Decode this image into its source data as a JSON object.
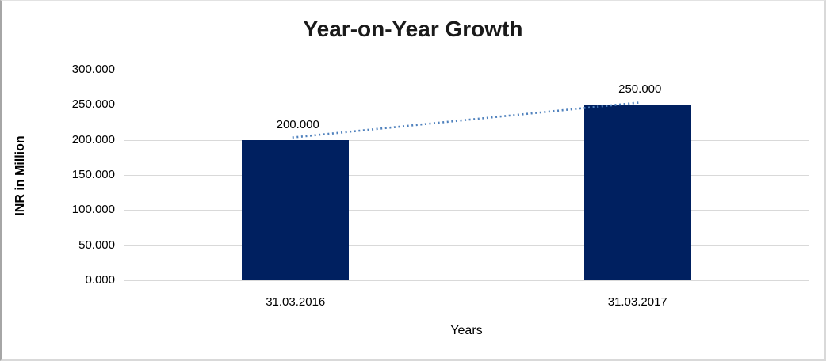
{
  "chart_data": {
    "type": "bar",
    "title": "Year-on-Year Growth",
    "xlabel": "Years",
    "ylabel": "INR in Million",
    "categories": [
      "31.03.2016",
      "31.03.2017"
    ],
    "values": [
      200,
      250
    ],
    "value_labels": [
      "200.000",
      "250.000"
    ],
    "ylim": [
      0,
      300
    ],
    "ytick_step": 50,
    "ytick_labels": [
      "300.000",
      "250.000",
      "200.000",
      "150.000",
      "100.000",
      "50.000",
      "0.000"
    ],
    "grid": true,
    "legend_position": "none",
    "bar_color": "#002060",
    "gridline_color": "#d9d9d9",
    "trendline": {
      "style": "dotted",
      "color": "#4f81bd",
      "from_category": "31.03.2016",
      "to_category": "31.03.2017"
    }
  }
}
